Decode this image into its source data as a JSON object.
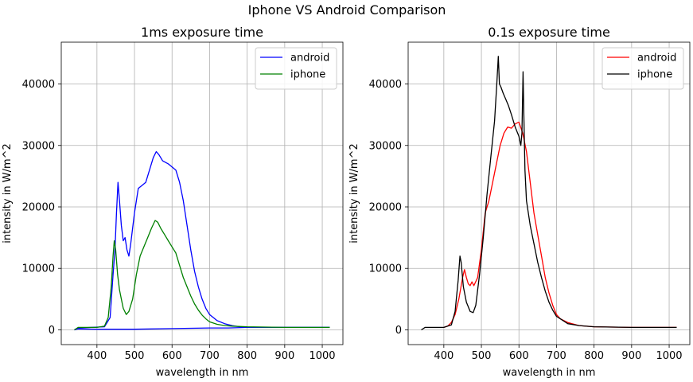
{
  "figure": {
    "suptitle": "Iphone VS Android Comparison"
  },
  "chart_data": [
    {
      "type": "line",
      "title": "1ms exposure time",
      "xlabel": "wavelength in nm",
      "ylabel": "intensity in W/m^2",
      "xlim": [
        305,
        1055
      ],
      "ylim": [
        -2400,
        46800
      ],
      "xticks": [
        400,
        500,
        600,
        700,
        800,
        900,
        1000
      ],
      "yticks": [
        0,
        10000,
        20000,
        30000,
        40000
      ],
      "grid": true,
      "legend": "top-right",
      "series": [
        {
          "name": "android",
          "color": "#0000ff",
          "points": [
            [
              340,
              0
            ],
            [
              350,
              150
            ],
            [
              400,
              100
            ],
            [
              500,
              100
            ],
            [
              600,
              200
            ],
            [
              700,
              300
            ],
            [
              750,
              300
            ],
            [
              800,
              400
            ],
            [
              900,
              400
            ],
            [
              1020,
              400
            ]
          ]
        },
        {
          "name": "android",
          "color": "#0000ff",
          "points": [
            [
              340,
              0
            ],
            [
              350,
              300
            ],
            [
              420,
              500
            ],
            [
              435,
              2000
            ],
            [
              443,
              9000
            ],
            [
              448,
              13000
            ],
            [
              452,
              19000
            ],
            [
              456,
              24000
            ],
            [
              460,
              21000
            ],
            [
              465,
              17000
            ],
            [
              470,
              14500
            ],
            [
              475,
              15000
            ],
            [
              480,
              13000
            ],
            [
              485,
              12000
            ],
            [
              490,
              14000
            ],
            [
              500,
              19000
            ],
            [
              510,
              23000
            ],
            [
              520,
              23500
            ],
            [
              530,
              24000
            ],
            [
              540,
              26000
            ],
            [
              550,
              28000
            ],
            [
              558,
              29000
            ],
            [
              565,
              28500
            ],
            [
              575,
              27500
            ],
            [
              590,
              27000
            ],
            [
              600,
              26500
            ],
            [
              610,
              26000
            ],
            [
              620,
              24000
            ],
            [
              630,
              21000
            ],
            [
              640,
              17000
            ],
            [
              650,
              13000
            ],
            [
              660,
              9500
            ],
            [
              670,
              7000
            ],
            [
              680,
              5000
            ],
            [
              690,
              3500
            ],
            [
              700,
              2500
            ],
            [
              720,
              1500
            ],
            [
              740,
              1000
            ],
            [
              760,
              700
            ],
            [
              780,
              500
            ],
            [
              800,
              400
            ],
            [
              900,
              400
            ],
            [
              1020,
              400
            ]
          ]
        },
        {
          "name": "iphone",
          "color": "#008000",
          "points": [
            [
              340,
              0
            ],
            [
              350,
              400
            ],
            [
              400,
              400
            ],
            [
              420,
              600
            ],
            [
              430,
              2000
            ],
            [
              438,
              7000
            ],
            [
              443,
              12000
            ],
            [
              446,
              14500
            ],
            [
              450,
              13000
            ],
            [
              455,
              9000
            ],
            [
              460,
              6500
            ],
            [
              465,
              5000
            ],
            [
              470,
              3500
            ],
            [
              478,
              2500
            ],
            [
              485,
              3000
            ],
            [
              495,
              5000
            ],
            [
              505,
              9000
            ],
            [
              515,
              12000
            ],
            [
              525,
              13500
            ],
            [
              535,
              15000
            ],
            [
              545,
              16500
            ],
            [
              555,
              17800
            ],
            [
              562,
              17500
            ],
            [
              570,
              16500
            ],
            [
              580,
              15500
            ],
            [
              590,
              14500
            ],
            [
              600,
              13500
            ],
            [
              610,
              12500
            ],
            [
              620,
              10500
            ],
            [
              630,
              8500
            ],
            [
              640,
              7000
            ],
            [
              650,
              5500
            ],
            [
              660,
              4200
            ],
            [
              670,
              3200
            ],
            [
              680,
              2400
            ],
            [
              690,
              1800
            ],
            [
              700,
              1300
            ],
            [
              720,
              900
            ],
            [
              740,
              700
            ],
            [
              760,
              600
            ],
            [
              800,
              500
            ],
            [
              900,
              400
            ],
            [
              1020,
              400
            ]
          ]
        }
      ]
    },
    {
      "type": "line",
      "title": "0.1s exposure time",
      "xlabel": "wavelength in nm",
      "ylabel": "intensity in W/m^2",
      "xlim": [
        305,
        1055
      ],
      "ylim": [
        -2400,
        46800
      ],
      "xticks": [
        400,
        500,
        600,
        700,
        800,
        900,
        1000
      ],
      "yticks": [
        0,
        10000,
        20000,
        30000,
        40000
      ],
      "grid": true,
      "legend": "top-right",
      "series": [
        {
          "name": "android",
          "color": "#ff0000",
          "points": [
            [
              400,
              400
            ],
            [
              410,
              600
            ],
            [
              420,
              1200
            ],
            [
              430,
              2500
            ],
            [
              440,
              5000
            ],
            [
              450,
              8500
            ],
            [
              455,
              9800
            ],
            [
              460,
              8500
            ],
            [
              465,
              7500
            ],
            [
              470,
              7200
            ],
            [
              475,
              7800
            ],
            [
              480,
              7200
            ],
            [
              490,
              8500
            ],
            [
              500,
              13000
            ],
            [
              510,
              19000
            ],
            [
              520,
              21000
            ],
            [
              530,
              24000
            ],
            [
              540,
              27000
            ],
            [
              550,
              30000
            ],
            [
              560,
              32000
            ],
            [
              570,
              33000
            ],
            [
              580,
              32800
            ],
            [
              590,
              33500
            ],
            [
              600,
              33800
            ],
            [
              610,
              32000
            ],
            [
              620,
              29000
            ],
            [
              630,
              24000
            ],
            [
              640,
              19000
            ],
            [
              650,
              15500
            ],
            [
              660,
              12000
            ],
            [
              670,
              8500
            ],
            [
              680,
              6000
            ],
            [
              690,
              4000
            ],
            [
              700,
              2500
            ],
            [
              710,
              1800
            ],
            [
              730,
              1200
            ],
            [
              760,
              700
            ],
            [
              800,
              500
            ],
            [
              900,
              400
            ],
            [
              1020,
              400
            ]
          ]
        },
        {
          "name": "iphone",
          "color": "#000000",
          "points": [
            [
              340,
              0
            ],
            [
              350,
              400
            ],
            [
              400,
              400
            ],
            [
              420,
              800
            ],
            [
              430,
              3000
            ],
            [
              438,
              8000
            ],
            [
              443,
              12000
            ],
            [
              446,
              11000
            ],
            [
              452,
              7000
            ],
            [
              460,
              4500
            ],
            [
              470,
              3000
            ],
            [
              478,
              2800
            ],
            [
              485,
              4000
            ],
            [
              495,
              9000
            ],
            [
              505,
              15000
            ],
            [
              515,
              22000
            ],
            [
              525,
              28000
            ],
            [
              535,
              34000
            ],
            [
              541,
              40000
            ],
            [
              545,
              44500
            ],
            [
              548,
              40000
            ],
            [
              552,
              39500
            ],
            [
              558,
              38500
            ],
            [
              565,
              37500
            ],
            [
              572,
              36500
            ],
            [
              580,
              35000
            ],
            [
              590,
              33000
            ],
            [
              600,
              31500
            ],
            [
              605,
              30000
            ],
            [
              608,
              32000
            ],
            [
              611,
              42000
            ],
            [
              613,
              35000
            ],
            [
              616,
              26000
            ],
            [
              620,
              21000
            ],
            [
              630,
              17000
            ],
            [
              640,
              14000
            ],
            [
              650,
              11000
            ],
            [
              660,
              8500
            ],
            [
              670,
              6300
            ],
            [
              680,
              4500
            ],
            [
              690,
              3200
            ],
            [
              700,
              2200
            ],
            [
              710,
              1800
            ],
            [
              730,
              1000
            ],
            [
              760,
              700
            ],
            [
              800,
              500
            ],
            [
              900,
              400
            ],
            [
              1020,
              400
            ]
          ]
        }
      ]
    }
  ]
}
